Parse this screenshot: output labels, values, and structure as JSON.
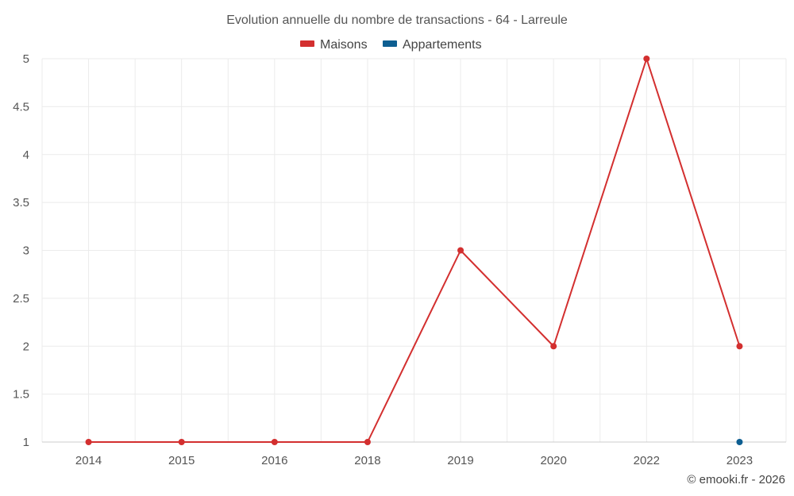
{
  "chart_data": {
    "type": "line",
    "title": "Evolution annuelle du nombre de transactions - 64 - Larreule",
    "categories": [
      "2014",
      "2015",
      "2016",
      "2018",
      "2019",
      "2020",
      "2022",
      "2023"
    ],
    "series": [
      {
        "name": "Maisons",
        "color": "#d32f2f",
        "values": [
          1,
          1,
          1,
          1,
          3,
          2,
          5,
          2
        ]
      },
      {
        "name": "Appartements",
        "color": "#0d5e91",
        "values": [
          null,
          null,
          null,
          null,
          null,
          null,
          null,
          1
        ]
      }
    ],
    "ylim": [
      1,
      5
    ],
    "yticks": [
      "1",
      "1.5",
      "2",
      "2.5",
      "3",
      "3.5",
      "4",
      "4.5",
      "5"
    ],
    "grid": true,
    "legend_position": "top-center",
    "xlabel": "",
    "ylabel": ""
  },
  "footer": "© emooki.fr - 2026"
}
